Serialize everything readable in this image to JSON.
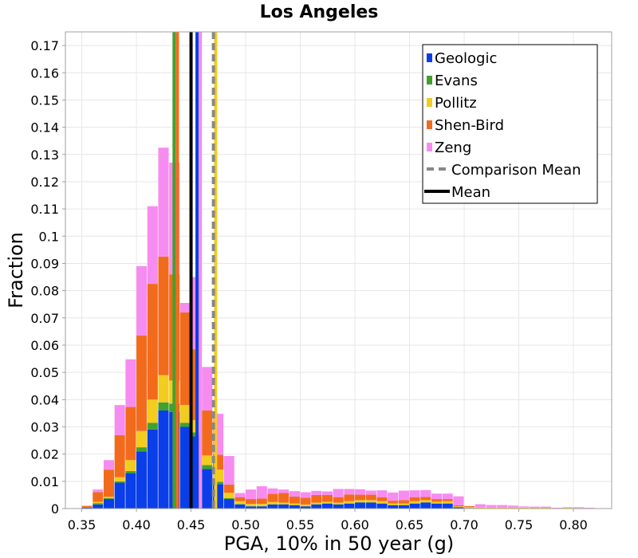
{
  "chart_data": {
    "type": "bar",
    "stacked": true,
    "title": "Los Angeles",
    "xlabel": "PGA, 10% in 50 year (g)",
    "ylabel": "Fraction",
    "xlim": [
      0.335,
      0.835
    ],
    "ylim": [
      0,
      0.175
    ],
    "bin_width": 0.01,
    "x_ticks": [
      0.35,
      0.4,
      0.45,
      0.5,
      0.55,
      0.6,
      0.65,
      0.7,
      0.75,
      0.8
    ],
    "x_tick_labels": [
      "0.35",
      "0.40",
      "0.45",
      "0.50",
      "0.55",
      "0.60",
      "0.65",
      "0.70",
      "0.75",
      "0.80"
    ],
    "y_ticks": [
      0,
      0.01,
      0.02,
      0.03,
      0.04,
      0.05,
      0.06,
      0.07,
      0.08,
      0.09,
      0.1,
      0.11,
      0.12,
      0.13,
      0.14,
      0.15,
      0.16,
      0.17
    ],
    "y_tick_labels": [
      "0",
      "0.01",
      "0.02",
      "0.03",
      "0.04",
      "0.05",
      "0.06",
      "0.07",
      "0.08",
      "0.09",
      "0.1",
      "0.11",
      "0.12",
      "0.13",
      "0.14",
      "0.15",
      "0.16",
      "0.17"
    ],
    "grid": true,
    "legend_position": "top-right",
    "x": [
      0.345,
      0.355,
      0.365,
      0.375,
      0.385,
      0.395,
      0.405,
      0.415,
      0.425,
      0.435,
      0.445,
      0.455,
      0.465,
      0.475,
      0.485,
      0.495,
      0.505,
      0.515,
      0.525,
      0.535,
      0.545,
      0.555,
      0.565,
      0.575,
      0.585,
      0.595,
      0.605,
      0.615,
      0.625,
      0.635,
      0.645,
      0.655,
      0.665,
      0.675,
      0.685,
      0.695,
      0.705,
      0.715,
      0.725,
      0.735,
      0.745,
      0.755,
      0.765,
      0.775,
      0.785,
      0.795,
      0.805,
      0.815
    ],
    "series": [
      {
        "name": "Geologic",
        "color": "#0a3ee8",
        "values": [
          0,
          0.0003,
          0.0015,
          0.0035,
          0.0095,
          0.013,
          0.021,
          0.029,
          0.036,
          0.0355,
          0.03,
          0.0265,
          0.0145,
          0.009,
          0.0035,
          0.0015,
          0.0008,
          0.0008,
          0.0015,
          0.0015,
          0.0012,
          0.0008,
          0.0015,
          0.0018,
          0.0015,
          0.0018,
          0.0022,
          0.0022,
          0.0018,
          0.0012,
          0.0012,
          0.0018,
          0.0022,
          0.0018,
          0.0018,
          0.0005,
          0.0002,
          0,
          0,
          0,
          0,
          0,
          0,
          0,
          0,
          0,
          0,
          0
        ]
      },
      {
        "name": "Evans",
        "color": "#42a02e",
        "values": [
          0,
          0.0002,
          0.0005,
          0.0003,
          0.0005,
          0.0008,
          0.0015,
          0.0025,
          0.003,
          0.003,
          0.0015,
          0.0015,
          0.0015,
          0.0008,
          0.0003,
          0.0002,
          0.0001,
          0.0001,
          0.0001,
          0.0001,
          0.0001,
          0.0001,
          0.0001,
          0.0001,
          0.0001,
          0.0001,
          0.0001,
          0.0001,
          0.0001,
          0.0001,
          0.0001,
          0.0001,
          0.0001,
          0.0001,
          0.0001,
          0,
          0,
          0,
          0,
          0,
          0,
          0,
          0,
          0,
          0,
          0,
          0,
          0
        ]
      },
      {
        "name": "Pollitz",
        "color": "#f2cc1f",
        "values": [
          0,
          0,
          0.0005,
          0.0005,
          0.0015,
          0.004,
          0.006,
          0.0085,
          0.01,
          0.0085,
          0.0065,
          0.0045,
          0.0035,
          0.0045,
          0.002,
          0.001,
          0.0008,
          0.0008,
          0.0008,
          0.0006,
          0.0006,
          0.0006,
          0.0006,
          0.0006,
          0.0006,
          0.0008,
          0.0008,
          0.0008,
          0.0008,
          0.0006,
          0.0006,
          0.0008,
          0.0008,
          0.0006,
          0.0008,
          0.0003,
          0.0003,
          0.0004,
          0.0004,
          0.0004,
          0.0006,
          0.0005,
          0.0003,
          0.0003,
          0.0001,
          0.0003,
          0.0002,
          0.0001
        ]
      },
      {
        "name": "Shen-Bird",
        "color": "#f26b1d",
        "values": [
          0,
          0.0005,
          0.0035,
          0.01,
          0.0155,
          0.0195,
          0.035,
          0.0425,
          0.0435,
          0.039,
          0.034,
          0.026,
          0.0165,
          0.0055,
          0.003,
          0.0015,
          0.0018,
          0.002,
          0.003,
          0.0035,
          0.0025,
          0.0025,
          0.0028,
          0.0025,
          0.002,
          0.0025,
          0.002,
          0.002,
          0.0015,
          0.001,
          0.0012,
          0.0015,
          0.0012,
          0.001,
          0.0008,
          0.0004,
          0.0004,
          0,
          0,
          0,
          0,
          0,
          0,
          0,
          0,
          0,
          0,
          0
        ]
      },
      {
        "name": "Zeng",
        "color": "#f78cf0",
        "values": [
          0,
          0,
          0.001,
          0.0035,
          0.011,
          0.0175,
          0.0255,
          0.0285,
          0.04,
          0.041,
          0.0035,
          0.0265,
          0.016,
          0.015,
          0.0105,
          0.0015,
          0.0035,
          0.0045,
          0.002,
          0.0013,
          0.002,
          0.002,
          0.0015,
          0.0013,
          0.003,
          0.002,
          0.002,
          0.0015,
          0.0025,
          0.003,
          0.0035,
          0.0025,
          0.0025,
          0.002,
          0.002,
          0.0033,
          0.0,
          0.0012,
          0.0009,
          0.0009,
          0.0005,
          0.0003,
          0.0004,
          0.0004,
          0.0002,
          0.0002,
          0.0003,
          0.0002
        ]
      }
    ],
    "vertical_lines": [
      {
        "series": "Evans",
        "x": 0.4345,
        "color": "#42a02e",
        "style": "solid"
      },
      {
        "series": "Shen-Bird",
        "x": 0.4375,
        "color": "#f26b1d",
        "style": "solid"
      },
      {
        "series": "Geologic",
        "x": 0.4555,
        "color": "#0a3ee8",
        "style": "solid"
      },
      {
        "series": "Zeng",
        "x": 0.4585,
        "color": "#f78cf0",
        "style": "solid"
      },
      {
        "series": "Pollitz",
        "x": 0.4725,
        "color": "#f2cc1f",
        "style": "solid"
      },
      {
        "series": "Comparison Mean",
        "x": 0.4705,
        "color": "#888888",
        "style": "dashed"
      },
      {
        "series": "Mean",
        "x": 0.45,
        "color": "#000000",
        "style": "solid"
      }
    ]
  },
  "legend": {
    "items": [
      {
        "label": "Geologic",
        "color": "#0a3ee8",
        "kind": "swatch"
      },
      {
        "label": "Evans",
        "color": "#42a02e",
        "kind": "swatch"
      },
      {
        "label": "Pollitz",
        "color": "#f2cc1f",
        "kind": "swatch"
      },
      {
        "label": "Shen-Bird",
        "color": "#f26b1d",
        "kind": "swatch"
      },
      {
        "label": "Zeng",
        "color": "#f78cf0",
        "kind": "swatch"
      },
      {
        "label": "Comparison Mean",
        "color": "#888888",
        "kind": "dashed"
      },
      {
        "label": "Mean",
        "color": "#000000",
        "kind": "solid"
      }
    ]
  }
}
